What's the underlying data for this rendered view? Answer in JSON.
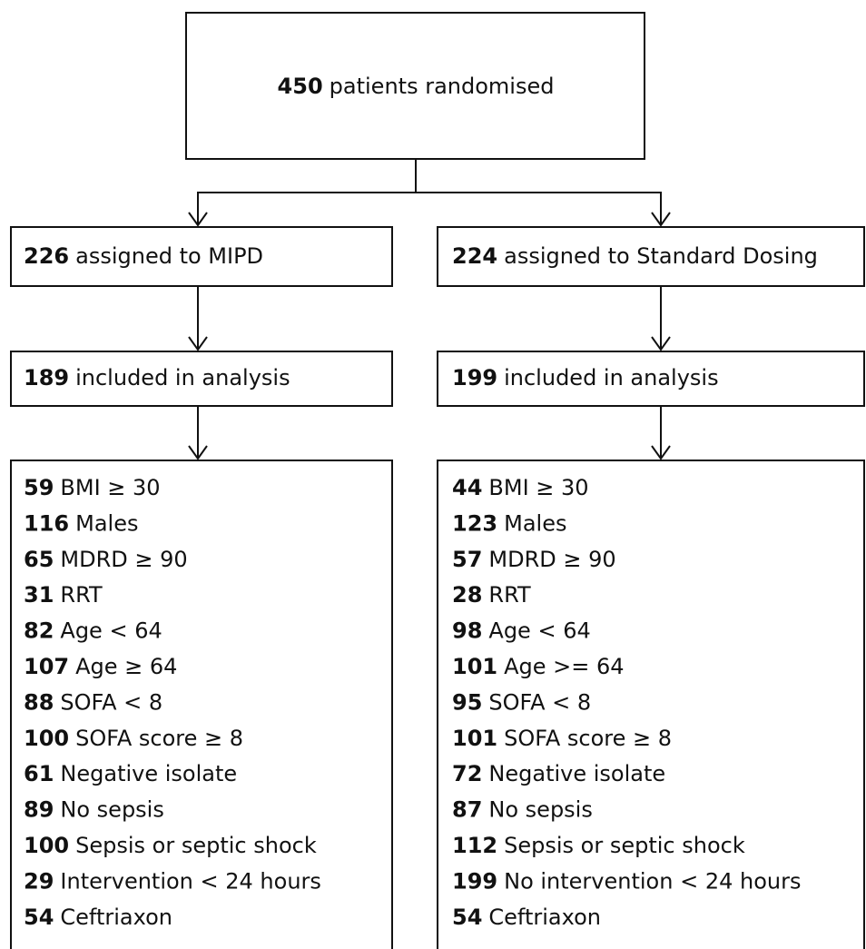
{
  "top": {
    "count": "450",
    "label": "patients randomised"
  },
  "arms": [
    {
      "assigned": {
        "count": "226",
        "label": "assigned to MIPD"
      },
      "analysis": {
        "count": "189",
        "label": "included in analysis"
      },
      "characteristics": [
        {
          "count": "59",
          "label": "BMI ≥ 30"
        },
        {
          "count": "116",
          "label": "Males"
        },
        {
          "count": "65",
          "label": "MDRD ≥ 90"
        },
        {
          "count": "31",
          "label": "RRT"
        },
        {
          "count": "82",
          "label": "Age < 64"
        },
        {
          "count": "107",
          "label": "Age ≥ 64"
        },
        {
          "count": "88",
          "label": "SOFA < 8"
        },
        {
          "count": "100",
          "label": "SOFA score ≥ 8"
        },
        {
          "count": "61",
          "label": "Negative isolate"
        },
        {
          "count": "89",
          "label": "No sepsis"
        },
        {
          "count": "100",
          "label": "Sepsis or septic shock"
        },
        {
          "count": "29",
          "label": "Intervention < 24 hours"
        },
        {
          "count": "54",
          "label": "Ceftriaxon"
        }
      ]
    },
    {
      "assigned": {
        "count": "224",
        "label": "assigned to Standard Dosing"
      },
      "analysis": {
        "count": "199",
        "label": "included in analysis"
      },
      "characteristics": [
        {
          "count": "44",
          "label": "BMI ≥ 30"
        },
        {
          "count": "123",
          "label": "Males"
        },
        {
          "count": "57",
          "label": "MDRD ≥ 90"
        },
        {
          "count": "28",
          "label": "RRT"
        },
        {
          "count": "98",
          "label": "Age < 64"
        },
        {
          "count": "101",
          "label": "Age >= 64"
        },
        {
          "count": "95",
          "label": "SOFA < 8"
        },
        {
          "count": "101",
          "label": "SOFA score ≥ 8"
        },
        {
          "count": "72",
          "label": "Negative isolate"
        },
        {
          "count": "87",
          "label": "No sepsis"
        },
        {
          "count": "112",
          "label": "Sepsis or septic shock"
        },
        {
          "count": "199",
          "label": "No intervention < 24 hours"
        },
        {
          "count": "54",
          "label": "Ceftriaxon"
        }
      ]
    }
  ]
}
